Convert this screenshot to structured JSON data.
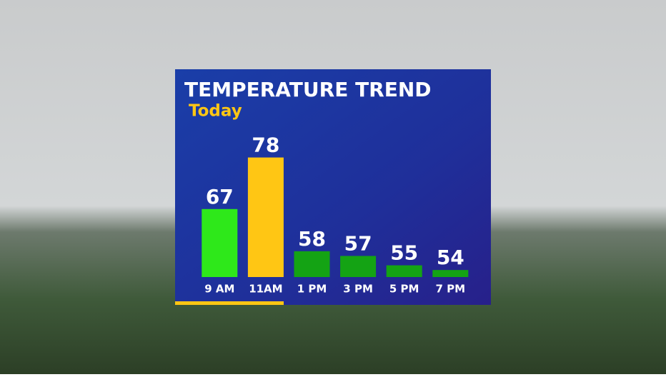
{
  "chart_data": {
    "type": "bar",
    "title": "TEMPERATURE TREND",
    "subtitle": "Today",
    "categories": [
      "9 AM",
      "11AM",
      "1 PM",
      "3 PM",
      "5 PM",
      "7 PM"
    ],
    "values": [
      67,
      78,
      58,
      57,
      55,
      54
    ],
    "colors": [
      "#2ee81a",
      "#ffc614",
      "#14a314",
      "#14a314",
      "#14a314",
      "#14a314"
    ],
    "ylim": [
      52.5,
      79
    ]
  }
}
